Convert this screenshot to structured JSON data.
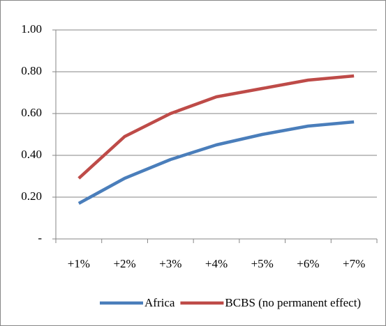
{
  "chart_data": {
    "type": "line",
    "categories": [
      "+1%",
      "+2%",
      "+3%",
      "+4%",
      "+5%",
      "+6%",
      "+7%"
    ],
    "series": [
      {
        "name": "Africa",
        "color": "#4a7ebb",
        "values": [
          0.17,
          0.29,
          0.38,
          0.45,
          0.5,
          0.54,
          0.56
        ]
      },
      {
        "name": "BCBS (no permanent effect)",
        "color": "#be4b48",
        "values": [
          0.29,
          0.49,
          0.6,
          0.68,
          0.72,
          0.76,
          0.78
        ]
      }
    ],
    "ylim": [
      0,
      1
    ],
    "yticks": [
      {
        "value": 0,
        "label": "-"
      },
      {
        "value": 0.2,
        "label": "0.20"
      },
      {
        "value": 0.4,
        "label": "0.40"
      },
      {
        "value": 0.6,
        "label": "0.60"
      },
      {
        "value": 0.8,
        "label": "0.80"
      },
      {
        "value": 1,
        "label": "1.00"
      }
    ],
    "grid": true,
    "legend": "bottom"
  }
}
